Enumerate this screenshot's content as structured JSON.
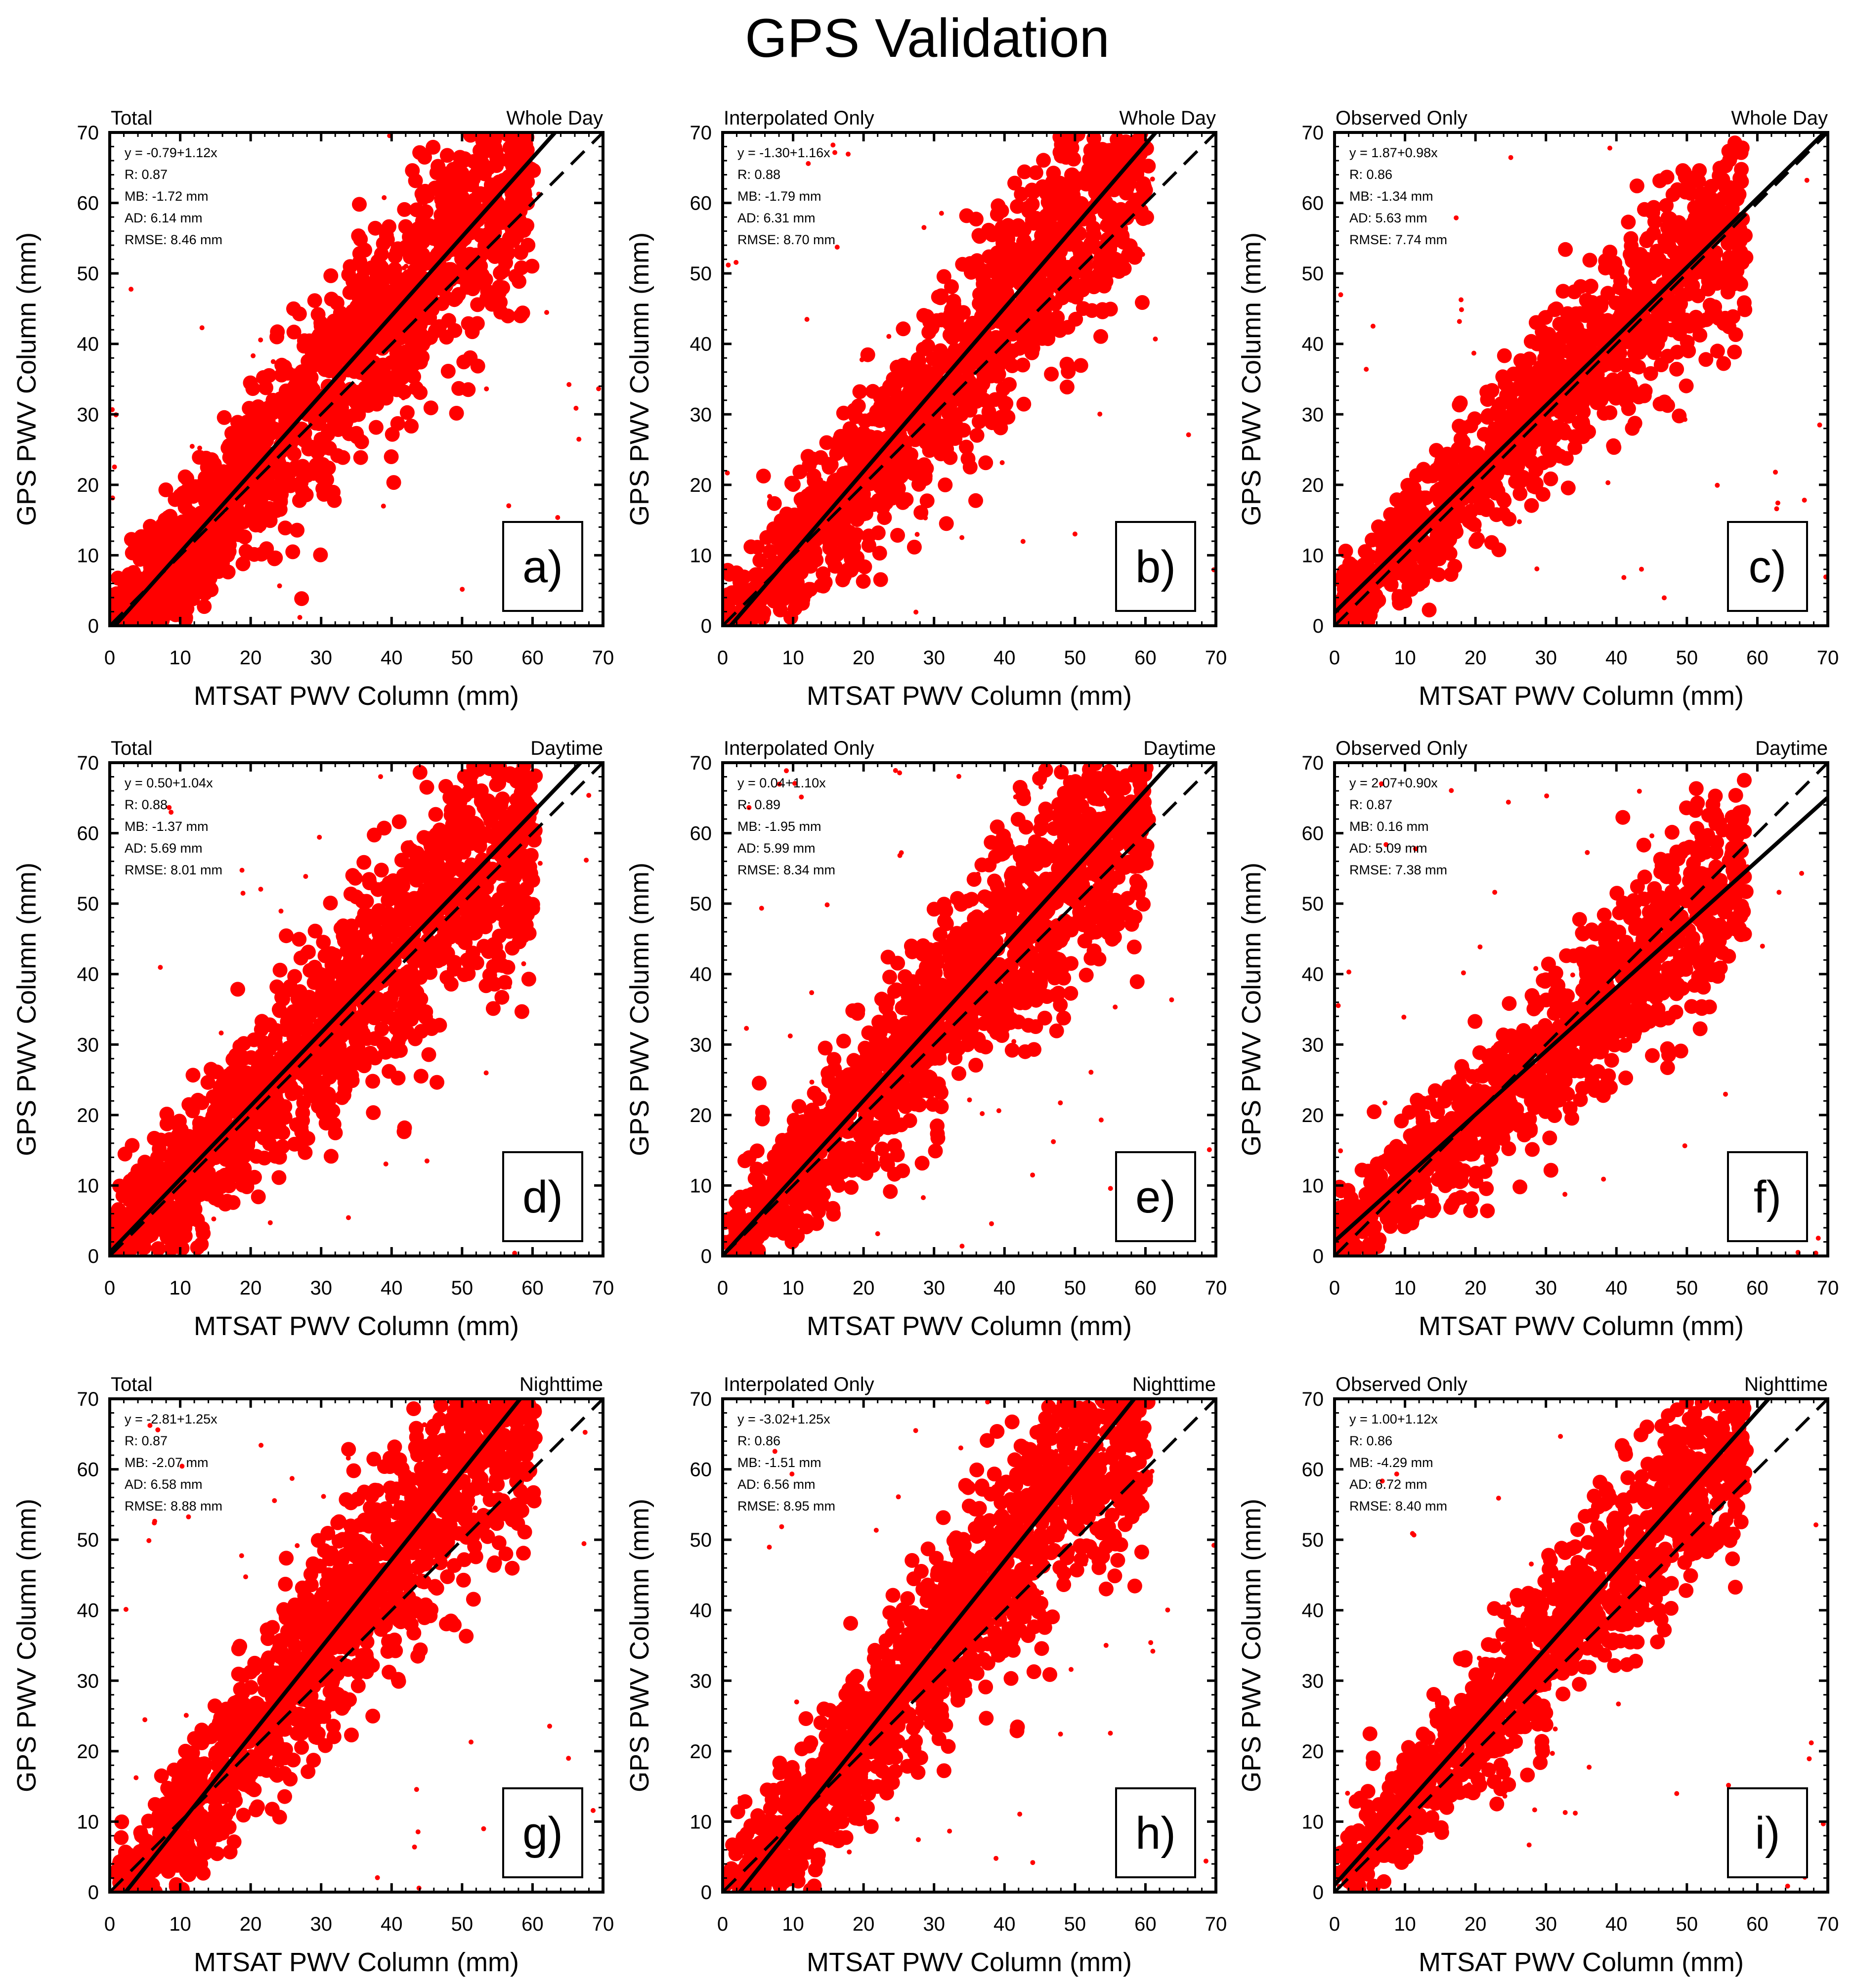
{
  "figure": {
    "title": "GPS Validation"
  },
  "chart_data": [
    {
      "type": "scatter",
      "panel": "a)",
      "title_left": "Total",
      "title_right": "Whole Day",
      "xlabel": "MTSAT PWV Column (mm)",
      "ylabel": "GPS PWV Column (mm)",
      "xlim": [
        0,
        70
      ],
      "ylim": [
        0,
        70
      ],
      "x_ticks": [
        "0",
        "10",
        "20",
        "30",
        "40",
        "50",
        "60",
        "70"
      ],
      "y_ticks": [
        "0",
        "10",
        "20",
        "30",
        "40",
        "50",
        "60",
        "70"
      ],
      "fit": {
        "intercept": -0.79,
        "slope": 1.12
      },
      "one_to_one": true,
      "stats": [
        "y = -0.79+1.12x",
        "R: 0.87",
        "MB: -1.72 mm",
        "AD: 6.14 mm",
        "RMSE: 8.46 mm"
      ],
      "point_color": "#ff0000",
      "spread": "wide"
    },
    {
      "type": "scatter",
      "panel": "b)",
      "title_left": "Interpolated Only",
      "title_right": "Whole Day",
      "xlabel": "MTSAT PWV Column (mm)",
      "ylabel": "GPS PWV Column (mm)",
      "xlim": [
        0,
        70
      ],
      "ylim": [
        0,
        70
      ],
      "x_ticks": [
        "0",
        "10",
        "20",
        "30",
        "40",
        "50",
        "60",
        "70"
      ],
      "y_ticks": [
        "0",
        "10",
        "20",
        "30",
        "40",
        "50",
        "60",
        "70"
      ],
      "fit": {
        "intercept": -1.3,
        "slope": 1.16
      },
      "one_to_one": true,
      "stats": [
        "y = -1.30+1.16x",
        "R: 0.88",
        "MB: -1.79 mm",
        "AD: 6.31 mm",
        "RMSE: 8.70 mm"
      ],
      "point_color": "#ff0000",
      "spread": "wide"
    },
    {
      "type": "scatter",
      "panel": "c)",
      "title_left": "Observed Only",
      "title_right": "Whole Day",
      "xlabel": "MTSAT PWV Column (mm)",
      "ylabel": "GPS PWV Column (mm)",
      "xlim": [
        0,
        70
      ],
      "ylim": [
        0,
        70
      ],
      "x_ticks": [
        "0",
        "10",
        "20",
        "30",
        "40",
        "50",
        "60",
        "70"
      ],
      "y_ticks": [
        "0",
        "10",
        "20",
        "30",
        "40",
        "50",
        "60",
        "70"
      ],
      "fit": {
        "intercept": 1.87,
        "slope": 0.98
      },
      "one_to_one": true,
      "stats": [
        "y = 1.87+0.98x",
        "R: 0.86",
        "MB: -1.34 mm",
        "AD: 5.63 mm",
        "RMSE: 7.74 mm"
      ],
      "point_color": "#ff0000",
      "spread": "medium"
    },
    {
      "type": "scatter",
      "panel": "d)",
      "title_left": "Total",
      "title_right": "Daytime",
      "xlabel": "MTSAT PWV Column (mm)",
      "ylabel": "GPS PWV Column (mm)",
      "xlim": [
        0,
        70
      ],
      "ylim": [
        0,
        70
      ],
      "x_ticks": [
        "0",
        "10",
        "20",
        "30",
        "40",
        "50",
        "60",
        "70"
      ],
      "y_ticks": [
        "0",
        "10",
        "20",
        "30",
        "40",
        "50",
        "60",
        "70"
      ],
      "fit": {
        "intercept": 0.5,
        "slope": 1.04
      },
      "one_to_one": true,
      "stats": [
        "y = 0.50+1.04x",
        "R: 0.88",
        "MB: -1.37 mm",
        "AD: 5.69 mm",
        "RMSE: 8.01 mm"
      ],
      "point_color": "#ff0000",
      "spread": "wide"
    },
    {
      "type": "scatter",
      "panel": "e)",
      "title_left": "Interpolated Only",
      "title_right": "Daytime",
      "xlabel": "MTSAT PWV Column (mm)",
      "ylabel": "GPS PWV Column (mm)",
      "xlim": [
        0,
        70
      ],
      "ylim": [
        0,
        70
      ],
      "x_ticks": [
        "0",
        "10",
        "20",
        "30",
        "40",
        "50",
        "60",
        "70"
      ],
      "y_ticks": [
        "0",
        "10",
        "20",
        "30",
        "40",
        "50",
        "60",
        "70"
      ],
      "fit": {
        "intercept": 0.04,
        "slope": 1.1
      },
      "one_to_one": true,
      "stats": [
        "y = 0.04+1.10x",
        "R: 0.89",
        "MB: -1.95 mm",
        "AD: 5.99 mm",
        "RMSE: 8.34 mm"
      ],
      "point_color": "#ff0000",
      "spread": "wide"
    },
    {
      "type": "scatter",
      "panel": "f)",
      "title_left": "Observed Only",
      "title_right": "Daytime",
      "xlabel": "MTSAT PWV Column (mm)",
      "ylabel": "GPS PWV Column (mm)",
      "xlim": [
        0,
        70
      ],
      "ylim": [
        0,
        70
      ],
      "x_ticks": [
        "0",
        "10",
        "20",
        "30",
        "40",
        "50",
        "60",
        "70"
      ],
      "y_ticks": [
        "0",
        "10",
        "20",
        "30",
        "40",
        "50",
        "60",
        "70"
      ],
      "fit": {
        "intercept": 2.07,
        "slope": 0.9
      },
      "one_to_one": true,
      "stats": [
        "y = 2.07+0.90x",
        "R: 0.87",
        "MB: 0.16 mm",
        "AD: 5.09 mm",
        "RMSE: 7.38 mm"
      ],
      "point_color": "#ff0000",
      "spread": "medium"
    },
    {
      "type": "scatter",
      "panel": "g)",
      "title_left": "Total",
      "title_right": "Nighttime",
      "xlabel": "MTSAT PWV Column (mm)",
      "ylabel": "GPS PWV Column (mm)",
      "xlim": [
        0,
        70
      ],
      "ylim": [
        0,
        70
      ],
      "x_ticks": [
        "0",
        "10",
        "20",
        "30",
        "40",
        "50",
        "60",
        "70"
      ],
      "y_ticks": [
        "0",
        "10",
        "20",
        "30",
        "40",
        "50",
        "60",
        "70"
      ],
      "fit": {
        "intercept": -2.81,
        "slope": 1.25
      },
      "one_to_one": true,
      "stats": [
        "y = -2.81+1.25x",
        "R: 0.87",
        "MB: -2.07 mm",
        "AD: 6.58 mm",
        "RMSE: 8.88 mm"
      ],
      "point_color": "#ff0000",
      "spread": "wide"
    },
    {
      "type": "scatter",
      "panel": "h)",
      "title_left": "Interpolated Only",
      "title_right": "Nighttime",
      "xlabel": "MTSAT PWV Column (mm)",
      "ylabel": "GPS PWV Column (mm)",
      "xlim": [
        0,
        70
      ],
      "ylim": [
        0,
        70
      ],
      "x_ticks": [
        "0",
        "10",
        "20",
        "30",
        "40",
        "50",
        "60",
        "70"
      ],
      "y_ticks": [
        "0",
        "10",
        "20",
        "30",
        "40",
        "50",
        "60",
        "70"
      ],
      "fit": {
        "intercept": -3.02,
        "slope": 1.25
      },
      "one_to_one": true,
      "stats": [
        "y = -3.02+1.25x",
        "R: 0.86",
        "MB: -1.51 mm",
        "AD: 6.56 mm",
        "RMSE: 8.95 mm"
      ],
      "point_color": "#ff0000",
      "spread": "wide"
    },
    {
      "type": "scatter",
      "panel": "i)",
      "title_left": "Observed Only",
      "title_right": "Nighttime",
      "xlabel": "MTSAT PWV Column (mm)",
      "ylabel": "GPS PWV Column (mm)",
      "xlim": [
        0,
        70
      ],
      "ylim": [
        0,
        70
      ],
      "x_ticks": [
        "0",
        "10",
        "20",
        "30",
        "40",
        "50",
        "60",
        "70"
      ],
      "y_ticks": [
        "0",
        "10",
        "20",
        "30",
        "40",
        "50",
        "60",
        "70"
      ],
      "fit": {
        "intercept": 1.0,
        "slope": 1.12
      },
      "one_to_one": true,
      "stats": [
        "y = 1.00+1.12x",
        "R: 0.86",
        "MB: -4.29 mm",
        "AD: 6.72 mm",
        "RMSE: 8.40 mm"
      ],
      "point_color": "#ff0000",
      "spread": "medium"
    }
  ]
}
